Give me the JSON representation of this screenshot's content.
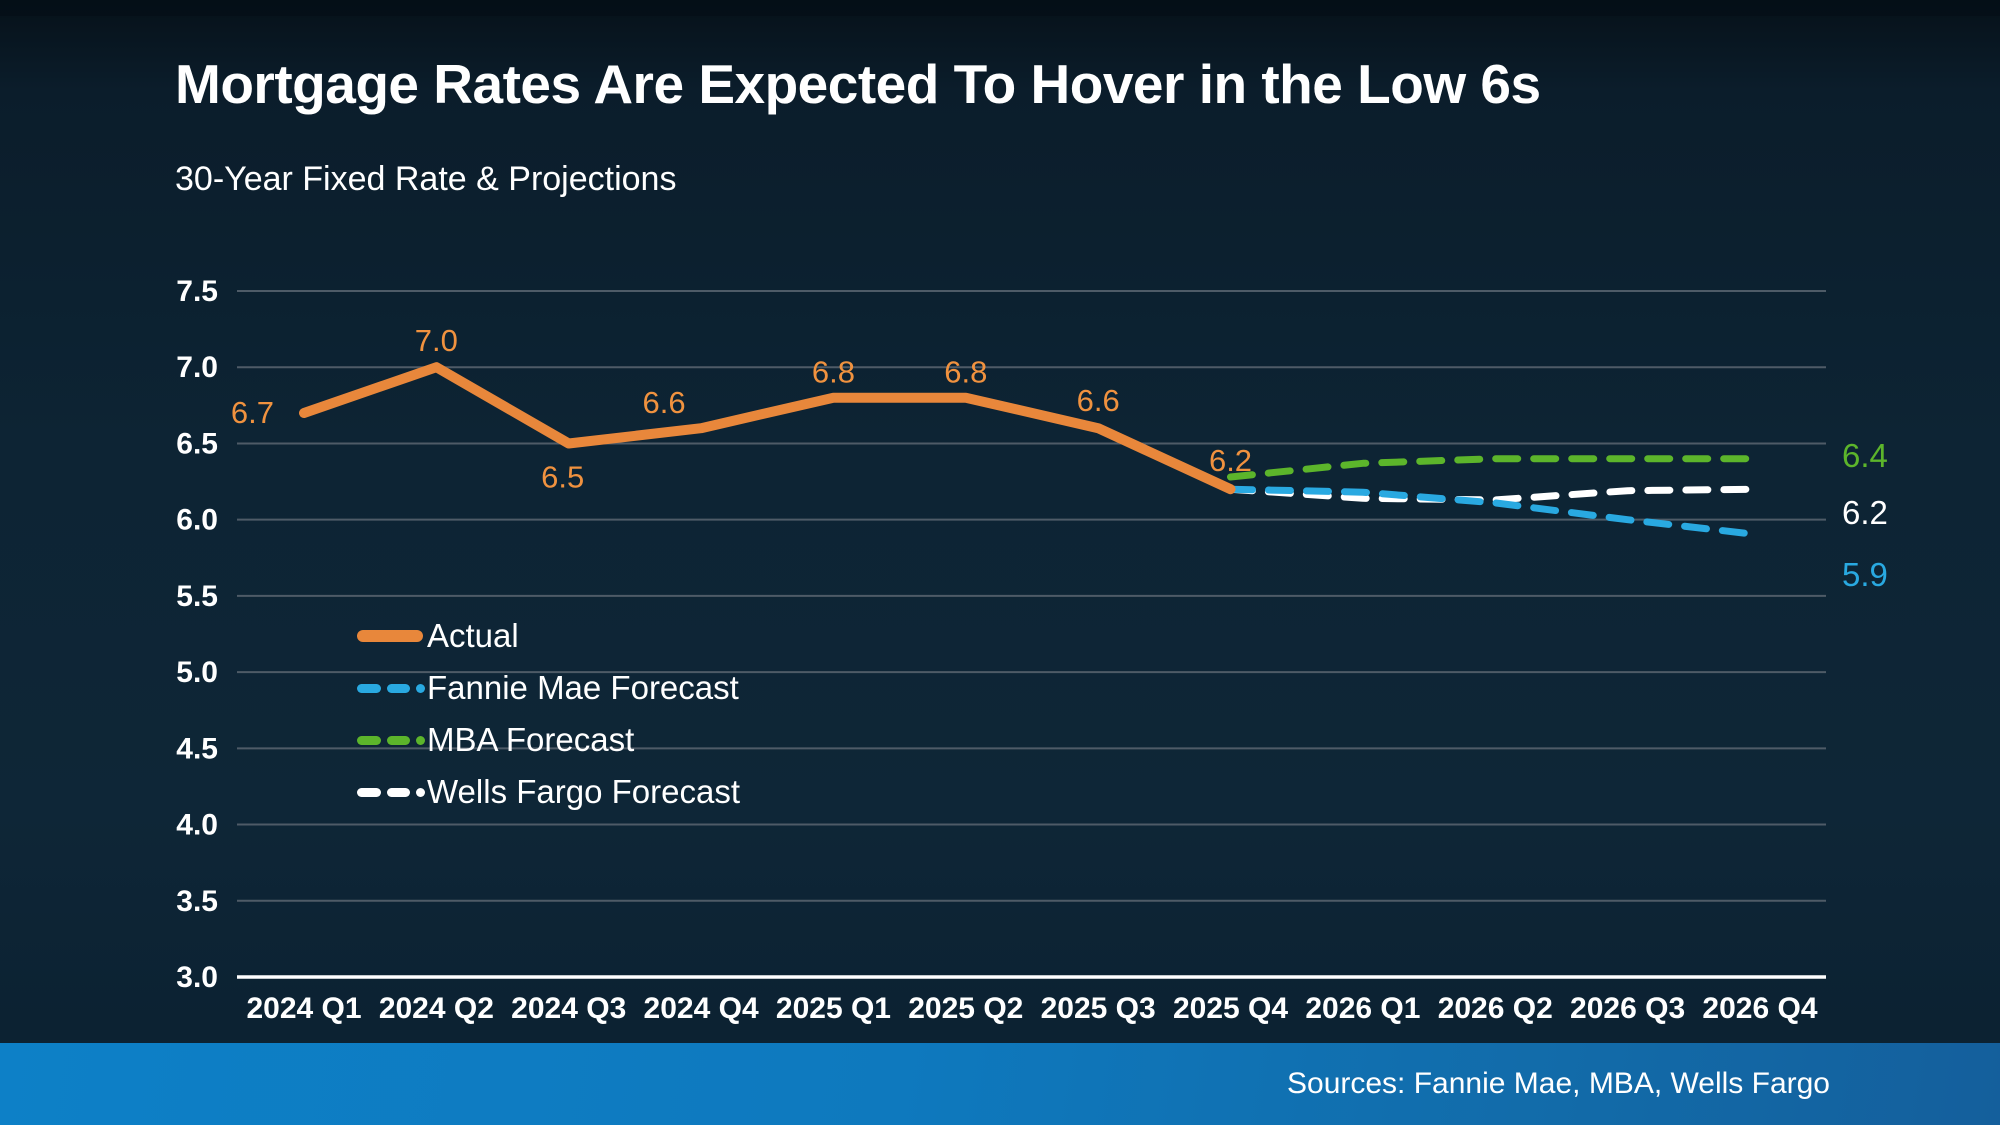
{
  "chart_data": {
    "type": "line",
    "title": "Mortgage Rates Are Expected To Hover in the Low 6s",
    "subtitle": "30-Year Fixed Rate & Projections",
    "categories": [
      "2024 Q1",
      "2024 Q2",
      "2024 Q3",
      "2024 Q4",
      "2025 Q1",
      "2025 Q2",
      "2025 Q3",
      "2025 Q4",
      "2026 Q1",
      "2026 Q2",
      "2026 Q3",
      "2026 Q4"
    ],
    "ylim": [
      3.0,
      7.5
    ],
    "yticks": [
      3.0,
      3.5,
      4.0,
      4.5,
      5.0,
      5.5,
      6.0,
      6.5,
      7.0,
      7.5
    ],
    "grid": true,
    "legend_position": "middle-left",
    "colors": {
      "background": "#0d2434",
      "gridline": "#4e5b67",
      "axis": "#ffffff",
      "footer_bar": "#0d7dc4"
    },
    "series": [
      {
        "name": "Actual",
        "color": "#E8873B",
        "style": "solid",
        "start_index": 0,
        "values": [
          6.7,
          7.0,
          6.5,
          6.6,
          6.8,
          6.8,
          6.6,
          6.2
        ],
        "point_labels": [
          "6.7",
          "7.0",
          "6.5",
          "6.6",
          "6.8",
          "6.8",
          "6.6",
          "6.2"
        ]
      },
      {
        "name": "Fannie Mae Forecast",
        "color": "#29A9E1",
        "style": "dashed",
        "start_index": 7,
        "values": [
          6.2,
          6.18,
          6.11,
          6.0,
          5.9
        ],
        "end_label": "5.9"
      },
      {
        "name": "MBA Forecast",
        "color": "#5CB52B",
        "style": "dashed",
        "start_index": 7,
        "values": [
          6.28,
          6.37,
          6.4,
          6.4,
          6.4
        ],
        "end_label": "6.4"
      },
      {
        "name": "Wells Fargo Forecast",
        "color": "#FFFFFF",
        "style": "dashed",
        "start_index": 7,
        "values": [
          6.2,
          6.14,
          6.13,
          6.19,
          6.2
        ],
        "end_label": "6.2"
      }
    ]
  },
  "footer": {
    "sources": "Sources: Fannie Mae, MBA, Wells Fargo"
  }
}
